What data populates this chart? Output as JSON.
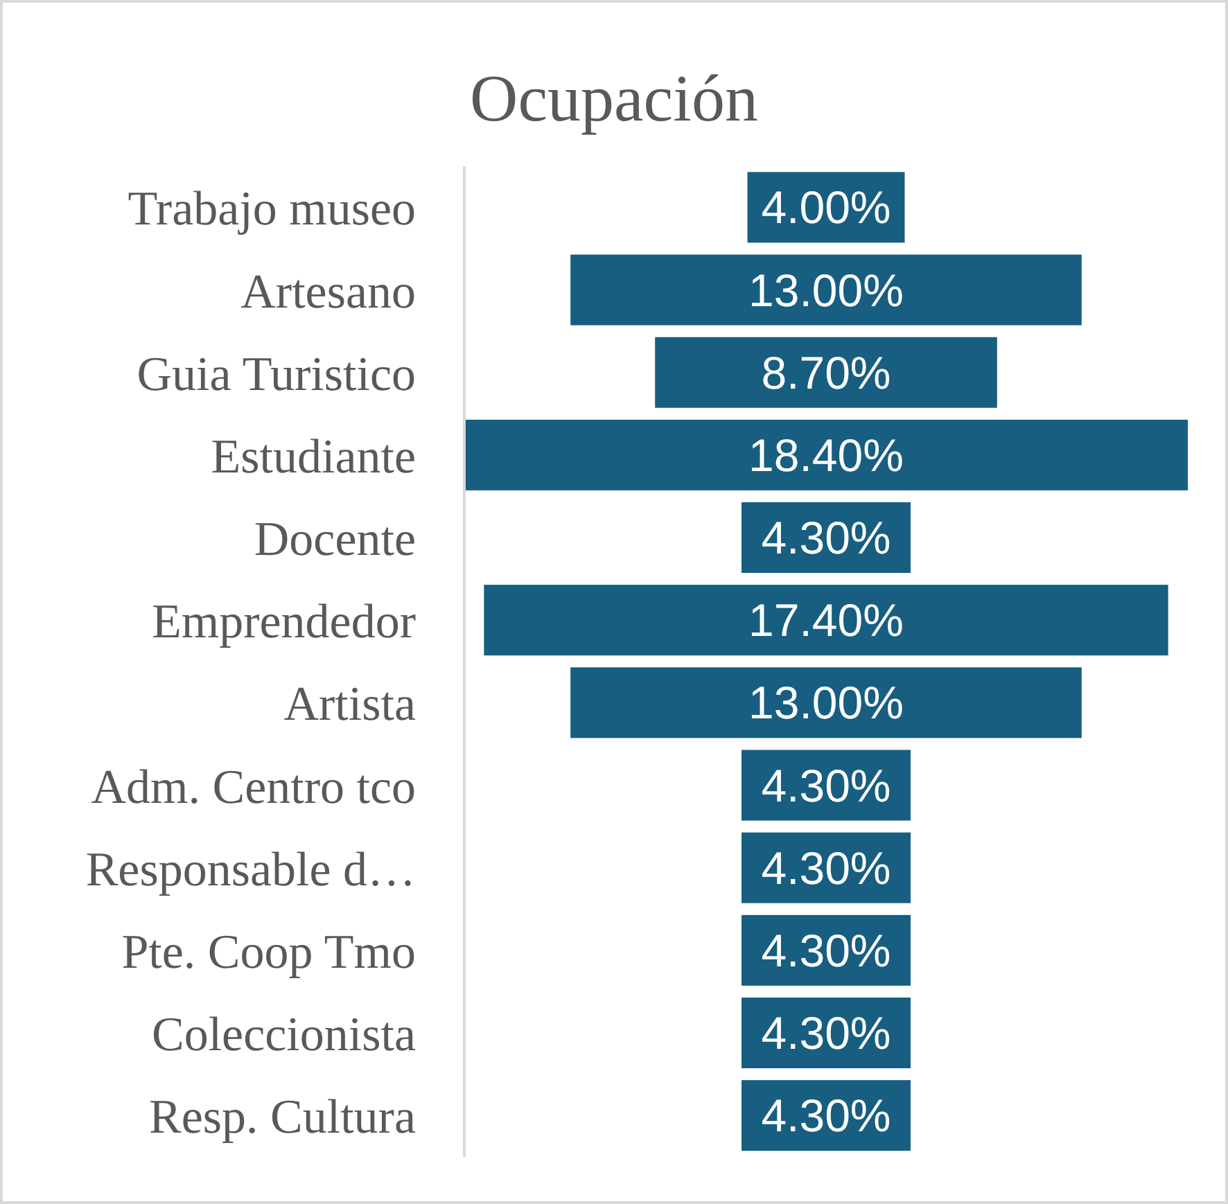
{
  "chart_data": {
    "type": "other",
    "title": "Ocupación",
    "categories": [
      "Trabajo museo",
      "Artesano",
      "Guia Turistico",
      "Estudiante",
      "Docente",
      "Emprendedor",
      "Artista",
      "Adm. Centro tco",
      "Responsable d…",
      "Pte. Coop Tmo",
      "Coleccionista",
      "Resp. Cultura"
    ],
    "values": [
      4,
      13,
      8.7,
      18.4,
      4.3,
      17.4,
      13,
      4.3,
      4.3,
      4.3,
      4.3,
      4.3
    ],
    "color": "#175e80",
    "value_labels": [
      "4.00%",
      "13.00%",
      "8.70%",
      "18.40%",
      "4.30%",
      "17.40%",
      "13.00%",
      "4.30%",
      "4.30%",
      "4.30%",
      "4.30%",
      "4.30%"
    ]
  }
}
